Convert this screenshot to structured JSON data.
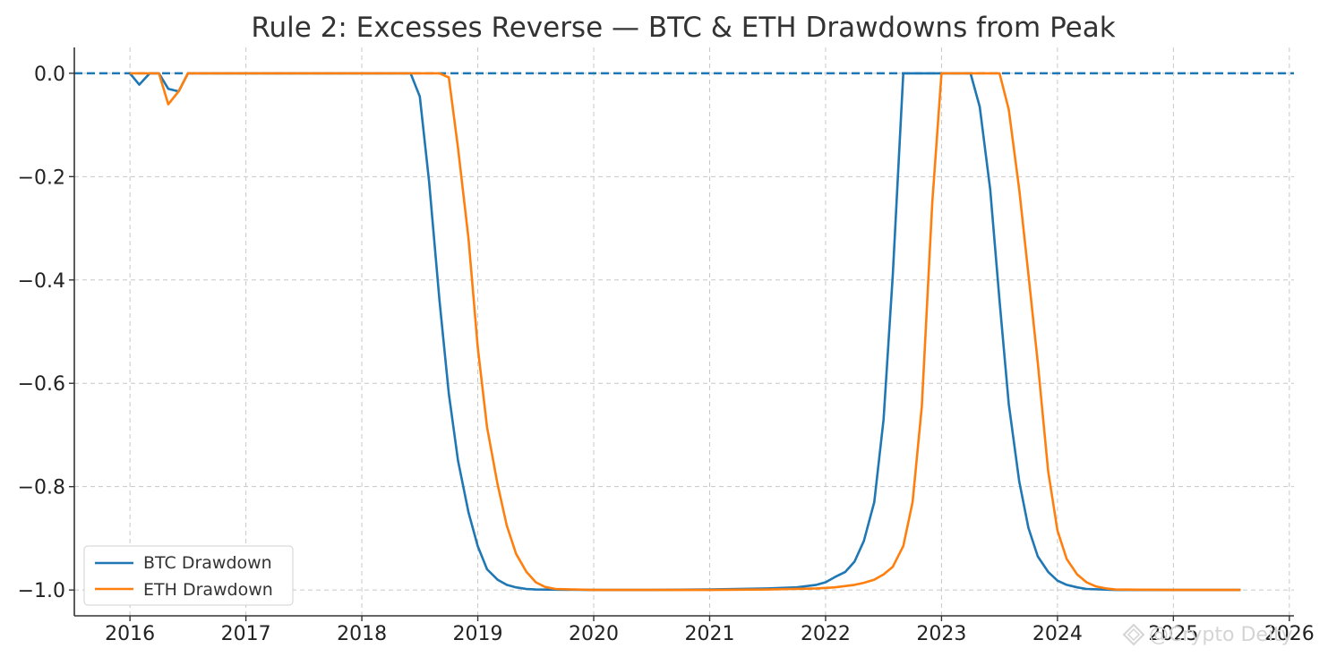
{
  "chart_data": {
    "type": "line",
    "title": "Rule 2: Excesses Reverse — BTC & ETH Drawdowns from Peak",
    "xlabel": "",
    "ylabel": "",
    "xlim": [
      2015.52,
      2026.04
    ],
    "ylim": [
      -1.05,
      0.05
    ],
    "x_ticks": [
      2016,
      2017,
      2018,
      2019,
      2020,
      2021,
      2022,
      2023,
      2024,
      2025,
      2026
    ],
    "x_tick_labels": [
      "2016",
      "2017",
      "2018",
      "2019",
      "2020",
      "2021",
      "2022",
      "2023",
      "2024",
      "2025",
      "2026"
    ],
    "y_ticks": [
      0.0,
      -0.2,
      -0.4,
      -0.6,
      -0.8,
      -1.0
    ],
    "y_tick_labels": [
      "0.0",
      "−0.2",
      "−0.4",
      "−0.6",
      "−0.8",
      "−1.0"
    ],
    "grid": true,
    "legend_position": "lower-left",
    "reference_line": {
      "y": 0.0,
      "style": "dashed",
      "color": "#1f77b4"
    },
    "series": [
      {
        "name": "BTC Drawdown",
        "color": "#1f77b4",
        "points": [
          [
            2016.0,
            0.0
          ],
          [
            2016.08,
            -0.022
          ],
          [
            2016.17,
            0.0
          ],
          [
            2016.25,
            0.0
          ],
          [
            2016.33,
            -0.03
          ],
          [
            2016.42,
            -0.035
          ],
          [
            2016.5,
            0.0
          ],
          [
            2017.0,
            0.0
          ],
          [
            2017.5,
            0.0
          ],
          [
            2018.0,
            0.0
          ],
          [
            2018.42,
            0.0
          ],
          [
            2018.5,
            -0.045
          ],
          [
            2018.58,
            -0.21
          ],
          [
            2018.67,
            -0.44
          ],
          [
            2018.75,
            -0.62
          ],
          [
            2018.83,
            -0.75
          ],
          [
            2018.92,
            -0.85
          ],
          [
            2019.0,
            -0.915
          ],
          [
            2019.08,
            -0.96
          ],
          [
            2019.17,
            -0.98
          ],
          [
            2019.25,
            -0.99
          ],
          [
            2019.33,
            -0.995
          ],
          [
            2019.42,
            -0.998
          ],
          [
            2019.5,
            -0.999
          ],
          [
            2020.0,
            -1.0
          ],
          [
            2020.5,
            -1.0
          ],
          [
            2021.0,
            -0.999
          ],
          [
            2021.5,
            -0.997
          ],
          [
            2021.75,
            -0.995
          ],
          [
            2021.92,
            -0.99
          ],
          [
            2022.0,
            -0.985
          ],
          [
            2022.08,
            -0.975
          ],
          [
            2022.17,
            -0.965
          ],
          [
            2022.25,
            -0.945
          ],
          [
            2022.33,
            -0.905
          ],
          [
            2022.42,
            -0.83
          ],
          [
            2022.5,
            -0.67
          ],
          [
            2022.58,
            -0.39
          ],
          [
            2022.67,
            0.0
          ],
          [
            2023.0,
            0.0
          ],
          [
            2023.25,
            0.0
          ],
          [
            2023.33,
            -0.065
          ],
          [
            2023.42,
            -0.225
          ],
          [
            2023.5,
            -0.44
          ],
          [
            2023.58,
            -0.64
          ],
          [
            2023.67,
            -0.79
          ],
          [
            2023.75,
            -0.88
          ],
          [
            2023.83,
            -0.935
          ],
          [
            2023.92,
            -0.965
          ],
          [
            2024.0,
            -0.982
          ],
          [
            2024.08,
            -0.99
          ],
          [
            2024.17,
            -0.995
          ],
          [
            2024.25,
            -0.998
          ],
          [
            2024.5,
            -1.0
          ],
          [
            2025.0,
            -1.0
          ],
          [
            2025.58,
            -1.0
          ]
        ]
      },
      {
        "name": "ETH Drawdown",
        "color": "#ff7f0e",
        "points": [
          [
            2016.0,
            0.0
          ],
          [
            2016.08,
            0.0
          ],
          [
            2016.17,
            0.0
          ],
          [
            2016.25,
            0.0
          ],
          [
            2016.33,
            -0.06
          ],
          [
            2016.42,
            -0.035
          ],
          [
            2016.5,
            0.0
          ],
          [
            2017.0,
            0.0
          ],
          [
            2017.5,
            0.0
          ],
          [
            2018.0,
            0.0
          ],
          [
            2018.5,
            0.0
          ],
          [
            2018.67,
            0.0
          ],
          [
            2018.75,
            -0.008
          ],
          [
            2018.83,
            -0.145
          ],
          [
            2018.92,
            -0.32
          ],
          [
            2019.0,
            -0.53
          ],
          [
            2019.08,
            -0.685
          ],
          [
            2019.17,
            -0.795
          ],
          [
            2019.25,
            -0.875
          ],
          [
            2019.33,
            -0.93
          ],
          [
            2019.42,
            -0.965
          ],
          [
            2019.5,
            -0.985
          ],
          [
            2019.58,
            -0.994
          ],
          [
            2019.67,
            -0.998
          ],
          [
            2020.0,
            -1.0
          ],
          [
            2021.0,
            -1.0
          ],
          [
            2021.5,
            -0.999
          ],
          [
            2021.92,
            -0.997
          ],
          [
            2022.08,
            -0.995
          ],
          [
            2022.25,
            -0.99
          ],
          [
            2022.33,
            -0.986
          ],
          [
            2022.42,
            -0.98
          ],
          [
            2022.5,
            -0.97
          ],
          [
            2022.58,
            -0.955
          ],
          [
            2022.67,
            -0.915
          ],
          [
            2022.75,
            -0.83
          ],
          [
            2022.83,
            -0.645
          ],
          [
            2022.92,
            -0.25
          ],
          [
            2023.0,
            0.0
          ],
          [
            2023.25,
            0.0
          ],
          [
            2023.5,
            0.0
          ],
          [
            2023.58,
            -0.07
          ],
          [
            2023.67,
            -0.225
          ],
          [
            2023.75,
            -0.39
          ],
          [
            2023.83,
            -0.56
          ],
          [
            2023.92,
            -0.77
          ],
          [
            2024.0,
            -0.885
          ],
          [
            2024.08,
            -0.94
          ],
          [
            2024.17,
            -0.97
          ],
          [
            2024.25,
            -0.985
          ],
          [
            2024.33,
            -0.993
          ],
          [
            2024.42,
            -0.997
          ],
          [
            2024.5,
            -0.999
          ],
          [
            2025.0,
            -1.0
          ],
          [
            2025.58,
            -1.0
          ]
        ]
      }
    ]
  },
  "watermark": {
    "text": "@Crypto Deity",
    "icon": "diamond-logo-icon"
  }
}
